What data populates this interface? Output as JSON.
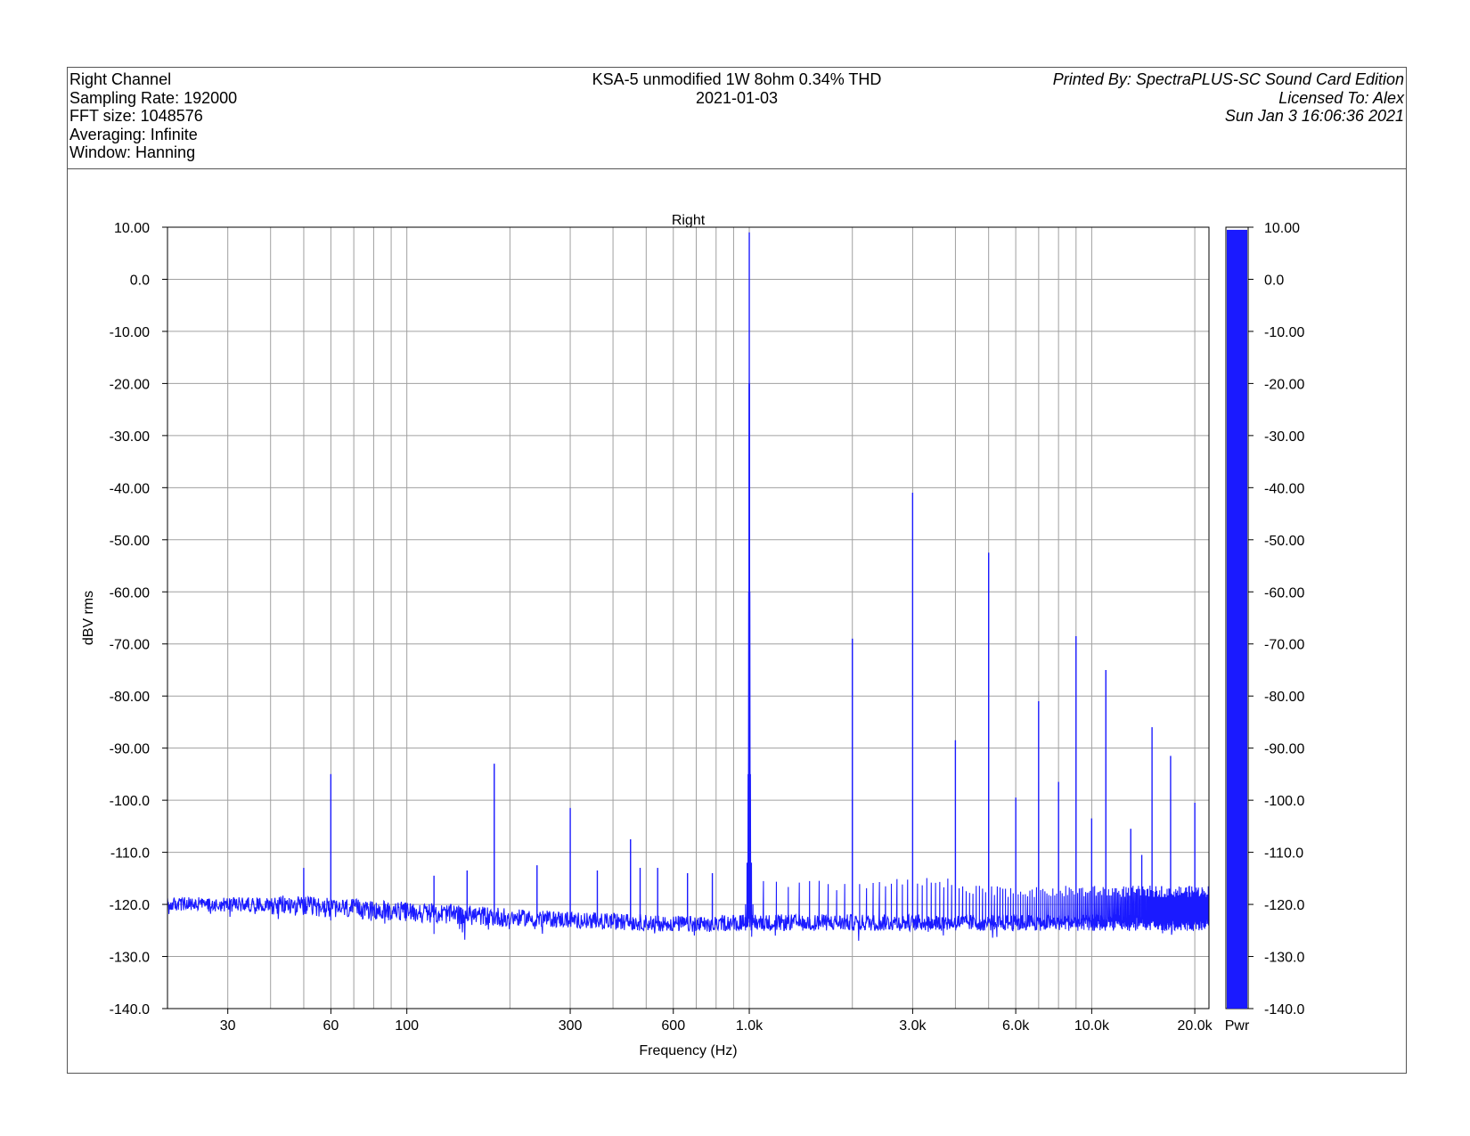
{
  "header": {
    "left": [
      "Right Channel",
      "Sampling Rate: 192000",
      "FFT size: 1048576",
      "Averaging: Infinite",
      "Window: Hanning"
    ],
    "center": [
      "KSA-5 unmodified 1W 8ohm 0.34% THD",
      "2021-01-03"
    ],
    "right": [
      "Printed By: SpectraPLUS-SC Sound Card Edition",
      "Licensed To: Alex",
      "Sun Jan  3 16:06:36 2021"
    ]
  },
  "colors": {
    "trace": "#1a1aff",
    "grid": "#a0a0a0",
    "axis": "#000000"
  },
  "chart_data": {
    "type": "line",
    "title": "Right",
    "xlabel": "Frequency (Hz)",
    "ylabel": "dBV rms",
    "xscale": "log",
    "xlim": [
      20,
      22000
    ],
    "ylim": [
      -140,
      10
    ],
    "grid": true,
    "x_ticks": [
      {
        "value": 30,
        "label": "30"
      },
      {
        "value": 60,
        "label": "60"
      },
      {
        "value": 100,
        "label": "100"
      },
      {
        "value": 300,
        "label": "300"
      },
      {
        "value": 600,
        "label": "600"
      },
      {
        "value": 1000,
        "label": "1.0k"
      },
      {
        "value": 3000,
        "label": "3.0k"
      },
      {
        "value": 6000,
        "label": "6.0k"
      },
      {
        "value": 10000,
        "label": "10.0k"
      },
      {
        "value": 20000,
        "label": "20.0k"
      }
    ],
    "y_ticks": [
      {
        "value": 10,
        "label": "10.00"
      },
      {
        "value": 0,
        "label": "0.0"
      },
      {
        "value": -10,
        "label": "-10.00"
      },
      {
        "value": -20,
        "label": "-20.00"
      },
      {
        "value": -30,
        "label": "-30.00"
      },
      {
        "value": -40,
        "label": "-40.00"
      },
      {
        "value": -50,
        "label": "-50.00"
      },
      {
        "value": -60,
        "label": "-60.00"
      },
      {
        "value": -70,
        "label": "-70.00"
      },
      {
        "value": -80,
        "label": "-80.00"
      },
      {
        "value": -90,
        "label": "-90.00"
      },
      {
        "value": -100,
        "label": "-100.0"
      },
      {
        "value": -110,
        "label": "-110.0"
      },
      {
        "value": -120,
        "label": "-120.0"
      },
      {
        "value": -130,
        "label": "-130.0"
      },
      {
        "value": -140,
        "label": "-140.0"
      }
    ],
    "noise_floor_db": -123.5,
    "peaks": [
      {
        "f": 50,
        "db": -113
      },
      {
        "f": 60,
        "db": -95
      },
      {
        "f": 120,
        "db": -114.5
      },
      {
        "f": 150,
        "db": -113.5
      },
      {
        "f": 180,
        "db": -93
      },
      {
        "f": 240,
        "db": -112.5
      },
      {
        "f": 300,
        "db": -101.5
      },
      {
        "f": 360,
        "db": -113.5
      },
      {
        "f": 450,
        "db": -107.5
      },
      {
        "f": 480,
        "db": -113
      },
      {
        "f": 540,
        "db": -113
      },
      {
        "f": 660,
        "db": -114
      },
      {
        "f": 780,
        "db": -114
      },
      {
        "f": 1000,
        "db": 9
      },
      {
        "f": 2000,
        "db": -69
      },
      {
        "f": 3000,
        "db": -41
      },
      {
        "f": 4000,
        "db": -88.5
      },
      {
        "f": 5000,
        "db": -52.5
      },
      {
        "f": 6000,
        "db": -99.5
      },
      {
        "f": 7000,
        "db": -81
      },
      {
        "f": 8000,
        "db": -96.5
      },
      {
        "f": 9000,
        "db": -68.5
      },
      {
        "f": 10000,
        "db": -103.5
      },
      {
        "f": 11000,
        "db": -75
      },
      {
        "f": 13000,
        "db": -105.5
      },
      {
        "f": 14000,
        "db": -110.5
      },
      {
        "f": 15000,
        "db": -86
      },
      {
        "f": 16000,
        "db": -116.5
      },
      {
        "f": 17000,
        "db": -91.5
      },
      {
        "f": 20000,
        "db": -100.5
      }
    ],
    "level_bar": {
      "label": "Pwr",
      "value_db": 9.5,
      "ticks": [
        "10.00",
        "0.0",
        "-10.00",
        "-20.00",
        "-30.00",
        "-40.00",
        "-50.00",
        "-60.00",
        "-70.00",
        "-80.00",
        "-90.00",
        "-100.0",
        "-110.0",
        "-120.0",
        "-130.0",
        "-140.0"
      ]
    }
  }
}
